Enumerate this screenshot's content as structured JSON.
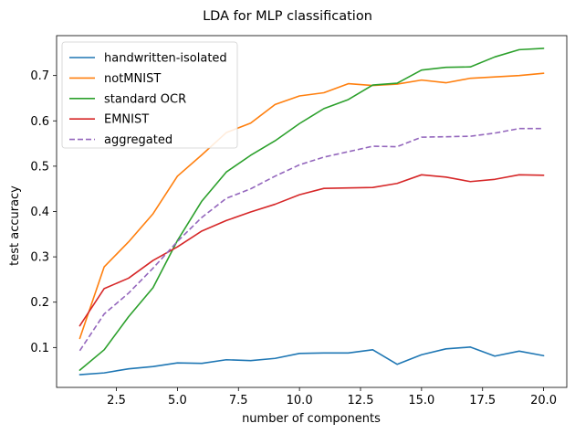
{
  "chart_data": {
    "type": "line",
    "title": "LDA for MLP classification",
    "xlabel": "number of components",
    "ylabel": "test accuracy",
    "xlim": [
      0.05,
      20.95
    ],
    "ylim": [
      0.012,
      0.788
    ],
    "xticks": [
      2.5,
      5.0,
      7.5,
      10.0,
      12.5,
      15.0,
      17.5,
      20.0
    ],
    "xtick_labels": [
      "2.5",
      "5.0",
      "7.5",
      "10.0",
      "12.5",
      "15.0",
      "17.5",
      "20.0"
    ],
    "yticks": [
      0.1,
      0.2,
      0.3,
      0.4,
      0.5,
      0.6,
      0.7
    ],
    "ytick_labels": [
      "0.1",
      "0.2",
      "0.3",
      "0.4",
      "0.5",
      "0.6",
      "0.7"
    ],
    "grid": false,
    "legend_position": "top-left",
    "x": [
      1,
      2,
      3,
      4,
      5,
      6,
      7,
      8,
      9,
      10,
      11,
      12,
      13,
      14,
      15,
      16,
      17,
      18,
      19,
      20
    ],
    "series": [
      {
        "name": "handwritten-isolated",
        "color": "#1f77b4",
        "dashed": false,
        "values": [
          0.04,
          0.044,
          0.053,
          0.058,
          0.066,
          0.065,
          0.073,
          0.071,
          0.076,
          0.087,
          0.088,
          0.088,
          0.095,
          0.063,
          0.084,
          0.097,
          0.101,
          0.081,
          0.092,
          0.082
        ]
      },
      {
        "name": "notMNIST",
        "color": "#ff7f0e",
        "dashed": false,
        "values": [
          0.12,
          0.278,
          0.333,
          0.395,
          0.478,
          0.525,
          0.574,
          0.595,
          0.636,
          0.655,
          0.662,
          0.682,
          0.678,
          0.681,
          0.69,
          0.684,
          0.694,
          0.697,
          0.7,
          0.705
        ]
      },
      {
        "name": "standard OCR",
        "color": "#2ca02c",
        "dashed": false,
        "values": [
          0.05,
          0.095,
          0.168,
          0.232,
          0.336,
          0.423,
          0.487,
          0.524,
          0.556,
          0.594,
          0.627,
          0.647,
          0.679,
          0.683,
          0.712,
          0.718,
          0.719,
          0.741,
          0.757,
          0.76
        ]
      },
      {
        "name": "EMNIST",
        "color": "#d62728",
        "dashed": false,
        "values": [
          0.148,
          0.23,
          0.253,
          0.292,
          0.322,
          0.357,
          0.38,
          0.399,
          0.416,
          0.437,
          0.451,
          0.452,
          0.453,
          0.462,
          0.481,
          0.476,
          0.466,
          0.471,
          0.481,
          0.48
        ]
      },
      {
        "name": "aggregated",
        "color": "#9467bd",
        "dashed": true,
        "values": [
          0.093,
          0.174,
          0.22,
          0.275,
          0.334,
          0.387,
          0.429,
          0.45,
          0.478,
          0.503,
          0.52,
          0.532,
          0.544,
          0.543,
          0.564,
          0.565,
          0.566,
          0.573,
          0.583,
          0.583
        ]
      }
    ]
  }
}
